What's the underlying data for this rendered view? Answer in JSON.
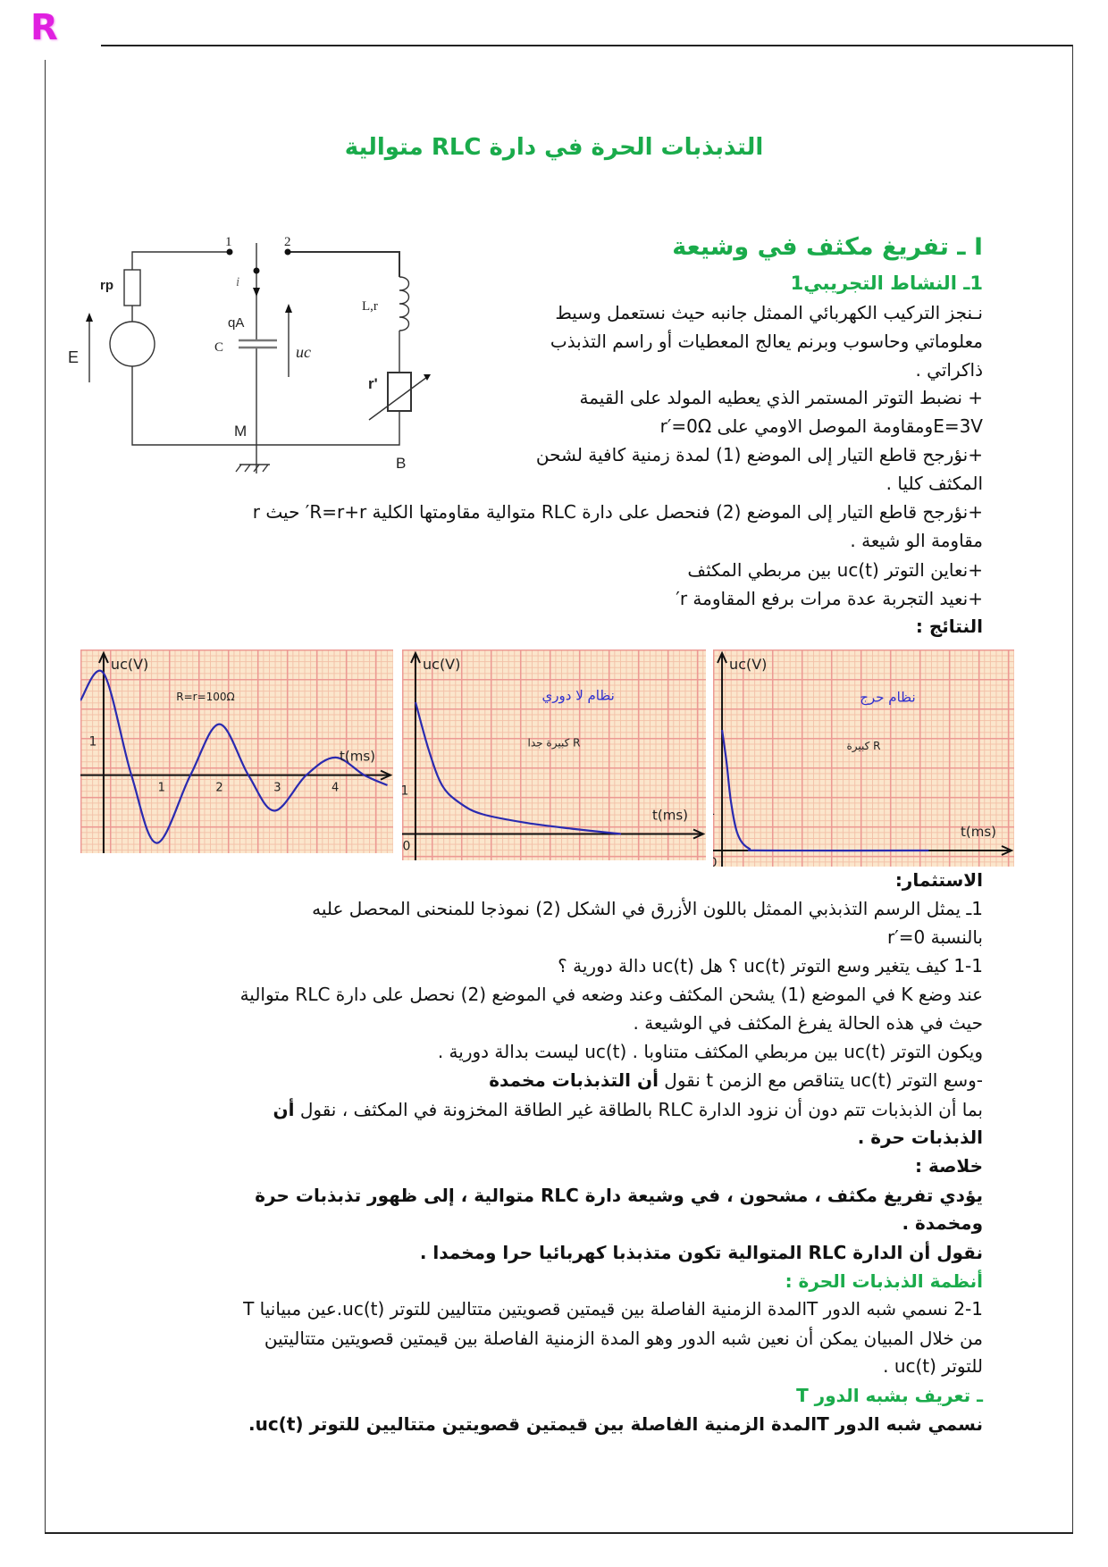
{
  "logo": "R",
  "title": "التذبذبات الحرة في دارة RLC متوالية",
  "section1": {
    "heading": "I ـ تفريغ مكثف في وشيعة",
    "subheading": "1ـ النشاط التجريبي1",
    "lines": [
      "نـنجز التركيب الكهربائي الممثل جانبه  حيث نستعمل وسيط",
      "معلوماتي وحاسوب وبرنم يعالج المعطيات أو راسم التذبذب",
      "ذاكراتي .",
      "+ نضبط التوتر المستمر الذي يعطيه المولد على القيمة",
      "E=3Vومقاومة الموصل الاومي على r′=0Ω",
      "+نؤرجح قاطع التيار إلى الموضع (1)  لمدة زمنية كافية لشحن",
      "المكثف كليا .",
      "+نؤرجح قاطع التيار إلى الموضع (2)  فنحصل على دارة RLC متوالية مقاومتها الكلية R=r+r′ حيث  r",
      "مقاومة الو شيعة .",
      "+نعاين التوتر  uc(t) بين مربطي المكثف",
      "+نعيد التجربة عدة مرات برفع المقاومة r′"
    ],
    "results_label": "النتائج :"
  },
  "circuit": {
    "labels": {
      "node1": "1",
      "node2": "2",
      "current": "i",
      "rp": "rp",
      "charge": "qA",
      "capacitor": "C",
      "uc": "uc",
      "emf": "E",
      "inductor": "L,r",
      "rheostat": "r'",
      "M": "M",
      "B": "B"
    }
  },
  "chart_data": [
    {
      "type": "line",
      "ylabel": "uc(V)",
      "xlabel": "t(ms)",
      "annotation": "R=r=100Ω",
      "xticks": [
        "1",
        "2",
        "3",
        "4"
      ],
      "yticks": [
        "1"
      ],
      "xlim": [
        -0.4,
        5
      ],
      "ylim": [
        -2.3,
        3.7
      ],
      "grid": true,
      "color": "#2a2ab0",
      "x": [
        -0.4,
        0,
        0.48,
        0.92,
        1.5,
        2,
        2.5,
        2.95,
        3.5,
        4,
        4.5,
        4.9
      ],
      "y": [
        2.2,
        3,
        0,
        -2,
        0,
        1.5,
        0,
        -1.05,
        0,
        0.52,
        0,
        -0.3
      ]
    },
    {
      "type": "line",
      "ylabel": "uc(V)",
      "xlabel": "t(ms)",
      "annotation_title": "نظام لا دوري",
      "annotation": "R كبيرة جدا",
      "yticks": [
        "1"
      ],
      "origin": "0",
      "xlim": [
        -0.3,
        6.5
      ],
      "ylim": [
        -0.6,
        4.2
      ],
      "grid": true,
      "color": "#2a2ab0",
      "x": [
        0,
        0.3,
        0.6,
        1,
        1.5,
        2.5,
        3.5,
        4.6
      ],
      "y": [
        3,
        1.9,
        1.1,
        0.7,
        0.45,
        0.25,
        0.12,
        0
      ]
    },
    {
      "type": "line",
      "ylabel": "uc(V)",
      "xlabel": "t(ms)",
      "annotation_title": "نظام حرج",
      "annotation": "R كبيرة",
      "yticks": [
        "1"
      ],
      "origin": "0",
      "xlim": [
        -0.2,
        6.5
      ],
      "ylim": [
        -0.4,
        5
      ],
      "grid": true,
      "color": "#2a2ab0",
      "x": [
        0,
        0.1,
        0.2,
        0.35,
        0.6,
        1,
        4.6
      ],
      "y": [
        3,
        2.2,
        1.2,
        0.4,
        0.05,
        0,
        0
      ]
    }
  ],
  "exploitation": {
    "label": "الاستثمار:",
    "lines": [
      "1ـ يمثل الرسم التذبذبي الممثل باللون الأزرق في الشكل (2) نموذجا للمنحنى المحصل عليه",
      "بالنسبة r′=0",
      "1-1 كيف يتغير وسع التوتر uc(t)  ؟ هل uc(t)  دالة دورية ؟",
      "عند وضع K في الموضع (1) يشحن المكثف وعند وضعه في الموضع (2) نحصل على دارة RLC متوالية",
      "حيث في هذه الحالة يفرغ المكثف في الوشيعة .",
      "ويكون التوتر uc(t) بين مربطي المكثف متناوبا . uc(t) ليست بدالة دورية ."
    ],
    "damped_line": {
      "text": "-وسع التوتر uc(t) يتناقص مع الزمن t نقول ",
      "bold": "أن التذبذبات مخمدة"
    },
    "free_line": {
      "text": "بما أن الذبذبات تتم دون أن نزود الدارة RLC بالطاقة غير الطاقة المخزونة في المكثف ، نقول ",
      "bold": "أن"
    },
    "free_line2": "الذبذبات حرة ."
  },
  "conclusion": {
    "label": "خلاصة :",
    "lines": [
      "يؤدي تفريغ مكثف ، مشحون ، في وشيعة دارة RLC متوالية ، إلى ظهور تذبذبات حرة",
      "ومخمدة .",
      "نقول أن الدارة RLC المتوالية تكون متذبذبا كهربائيا حرا ومخمدا ."
    ]
  },
  "regimes": {
    "heading": "أنظمة الذبذبات الحرة :",
    "lines": [
      "2-1 نسمي شبه الدور Tالمدة الزمنية الفاصلة بين قيمتين قصويتين متتاليين للتوتر  uc(t).عين مبيانيا T",
      "من خلال المبيان يمكن أن نعين شبه الدور وهو المدة الزمنية الفاصلة بين قيمتين قصويتين متتاليتين",
      "للتوتر uc(t) ."
    ],
    "definition_heading": "ـ تعريف بشبه الدور T",
    "definition": "نسمي شبه الدور Tالمدة الزمنية الفاصلة بين قيمتين قصويتين متتاليين للتوتر  uc(t)."
  },
  "colors": {
    "accent_green": "#1aab4b",
    "logo": "#e020e0",
    "curve": "#2a2ab0"
  }
}
